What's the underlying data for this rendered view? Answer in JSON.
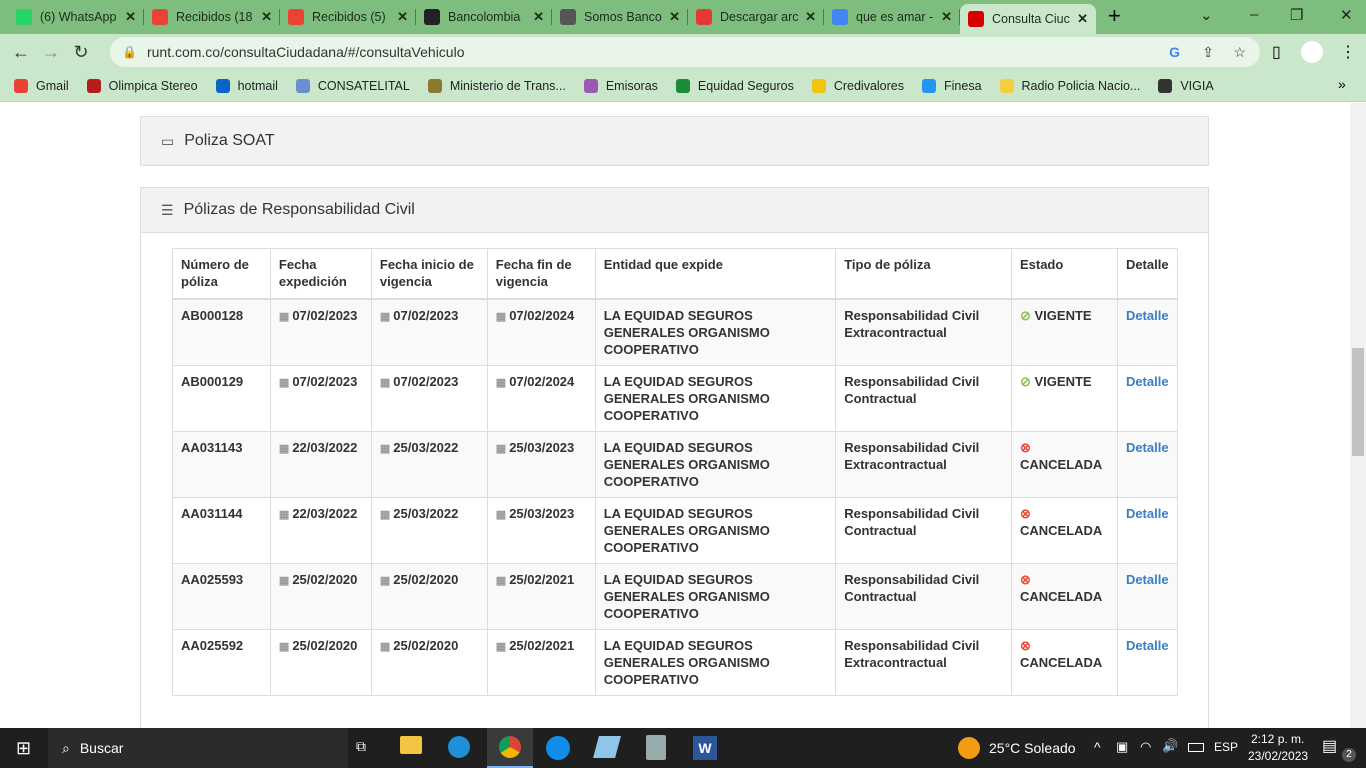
{
  "browser": {
    "tabs": [
      {
        "title": "(6) WhatsApp",
        "color": "#25d366"
      },
      {
        "title": "Recibidos (18",
        "color": "#ea4335"
      },
      {
        "title": "Recibidos (5)",
        "color": "#ea4335"
      },
      {
        "title": "Bancolombia",
        "color": "#222222"
      },
      {
        "title": "Somos Banco",
        "color": "#555555"
      },
      {
        "title": "Descargar arc",
        "color": "#e53935"
      },
      {
        "title": "que es amar -",
        "color": "#4285f4"
      },
      {
        "title": "Consulta Ciuc",
        "color": "#d50000",
        "active": true
      }
    ],
    "url": "runt.com.co/consultaCiudadana/#/consultaVehiculo",
    "bookmarks": [
      {
        "label": "Gmail",
        "color": "#ea4335"
      },
      {
        "label": "Olimpica Stereo",
        "color": "#b71c1c"
      },
      {
        "label": "hotmail",
        "color": "#0a64c8"
      },
      {
        "label": "CONSATELITAL",
        "color": "#6a8fd0"
      },
      {
        "label": "Ministerio de Trans...",
        "color": "#8a7a30"
      },
      {
        "label": "Emisoras",
        "color": "#9b59b6"
      },
      {
        "label": "Equidad Seguros",
        "color": "#1b8a3a"
      },
      {
        "label": "Credivalores",
        "color": "#f1c40f"
      },
      {
        "label": "Finesa",
        "color": "#2196f3"
      },
      {
        "label": "Radio Policia Nacio...",
        "color": "#f4d03f"
      },
      {
        "label": "VIGIA",
        "color": "#333333"
      }
    ]
  },
  "page": {
    "soat_title": "Poliza SOAT",
    "rc_title": "Pólizas de Responsabilidad Civil",
    "headers": [
      "Número de póliza",
      "Fecha expedición",
      "Fecha inicio de vigencia",
      "Fecha fin de vigencia",
      "Entidad que expide",
      "Tipo de póliza",
      "Estado",
      "Detalle"
    ],
    "rows": [
      [
        "AB000128",
        "07/02/2023",
        "07/02/2023",
        "07/02/2024",
        "LA EQUIDAD SEGUROS GENERALES ORGANISMO COOPERATIVO",
        "Responsabilidad Civil Extracontractual",
        "VIGENTE",
        "Detalle"
      ],
      [
        "AB000129",
        "07/02/2023",
        "07/02/2023",
        "07/02/2024",
        "LA EQUIDAD SEGUROS GENERALES ORGANISMO COOPERATIVO",
        "Responsabilidad Civil Contractual",
        "VIGENTE",
        "Detalle"
      ],
      [
        "AA031143",
        "22/03/2022",
        "25/03/2022",
        "25/03/2023",
        "LA EQUIDAD SEGUROS GENERALES ORGANISMO COOPERATIVO",
        "Responsabilidad Civil Extracontractual",
        "CANCELADA",
        "Detalle"
      ],
      [
        "AA031144",
        "22/03/2022",
        "25/03/2022",
        "25/03/2023",
        "LA EQUIDAD SEGUROS GENERALES ORGANISMO COOPERATIVO",
        "Responsabilidad Civil Contractual",
        "CANCELADA",
        "Detalle"
      ],
      [
        "AA025593",
        "25/02/2020",
        "25/02/2020",
        "25/02/2021",
        "LA EQUIDAD SEGUROS GENERALES ORGANISMO COOPERATIVO",
        "Responsabilidad Civil Contractual",
        "CANCELADA",
        "Detalle"
      ],
      [
        "AA025592",
        "25/02/2020",
        "25/02/2020",
        "25/02/2021",
        "LA EQUIDAD SEGUROS GENERALES ORGANISMO COOPERATIVO",
        "Responsabilidad Civil Extracontractual",
        "CANCELADA",
        "Detalle"
      ]
    ]
  },
  "taskbar": {
    "search": "Buscar",
    "weather": "25°C  Soleado",
    "lang": "ESP",
    "time": "2:12 p. m.",
    "date": "23/02/2023",
    "notifications": "2"
  }
}
